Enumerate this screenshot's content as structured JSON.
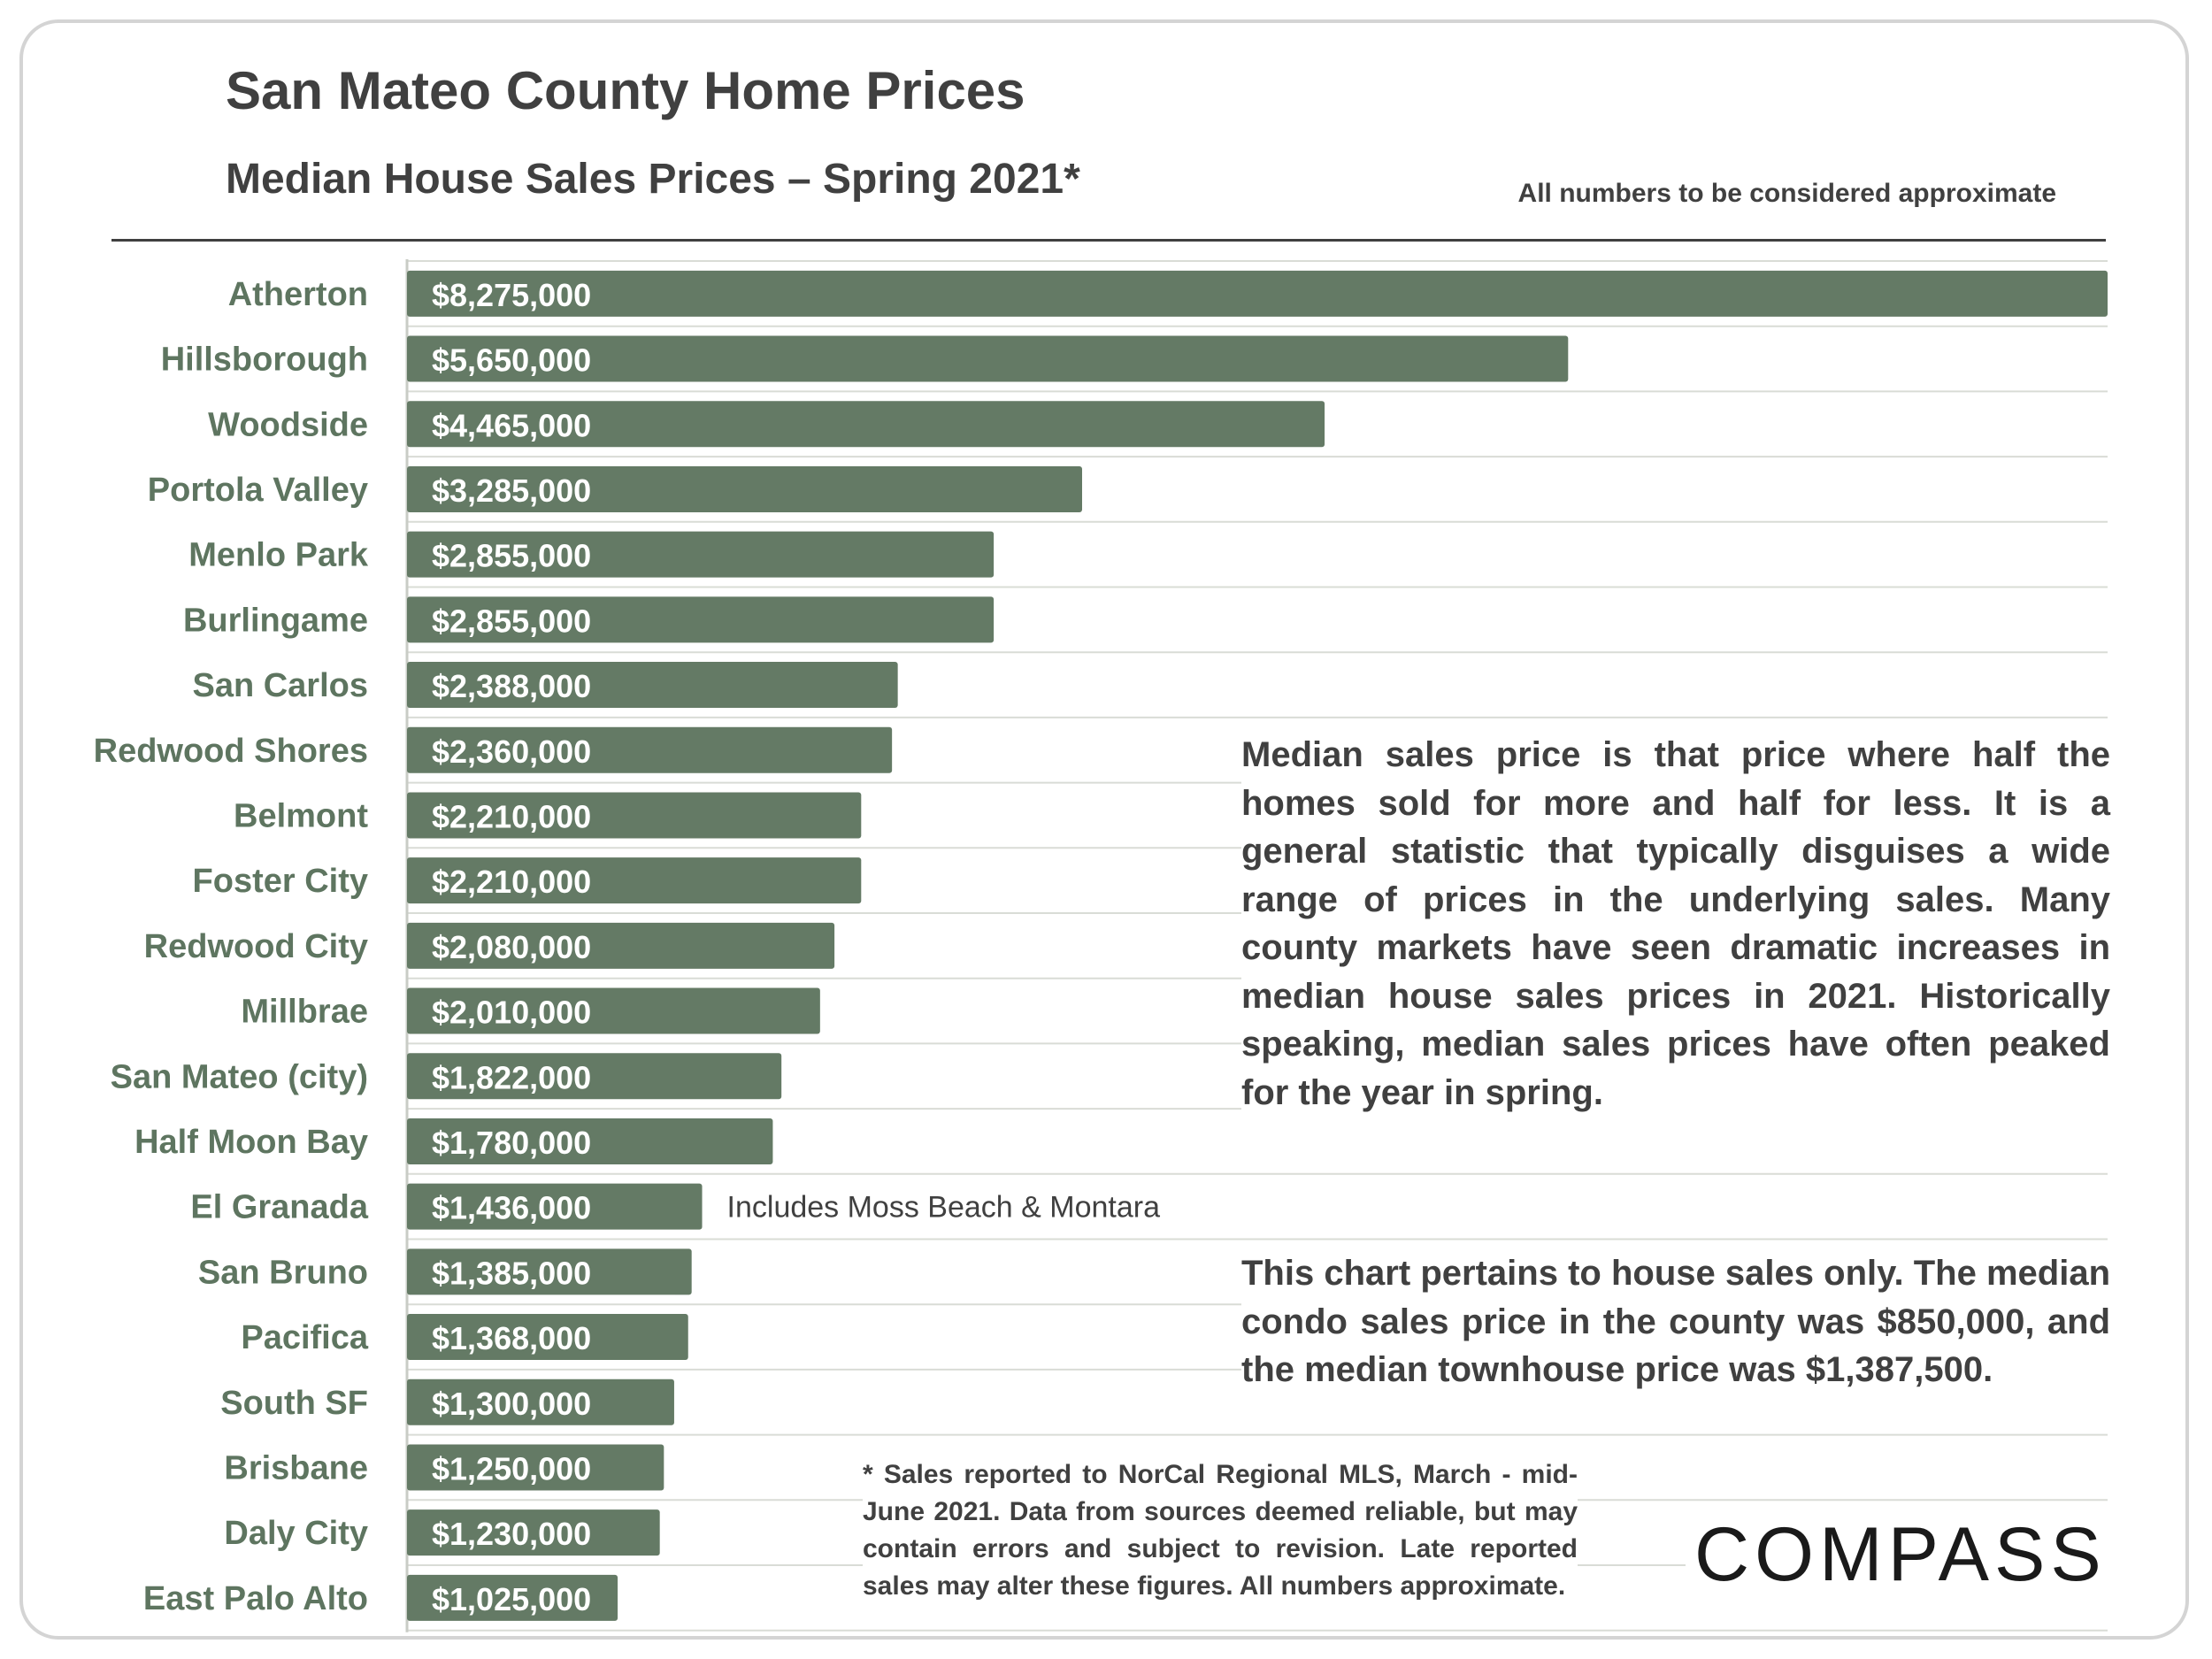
{
  "title": "San Mateo County Home Prices",
  "subtitle": "Median House Sales Prices – Spring 2021*",
  "note_top": "All numbers to be considered approximate",
  "chart_data": {
    "type": "bar",
    "orientation": "horizontal",
    "title": "Median House Sales Prices – Spring 2021*",
    "categories": [
      "Atherton",
      "Hillsborough",
      "Woodside",
      "Portola Valley",
      "Menlo Park",
      "Burlingame",
      "San Carlos",
      "Redwood Shores",
      "Belmont",
      "Foster City",
      "Redwood City",
      "Millbrae",
      "San Mateo (city)",
      "Half Moon Bay",
      "El Granada",
      "San Bruno",
      "Pacifica",
      "South SF",
      "Brisbane",
      "Daly City",
      "East Palo Alto"
    ],
    "values": [
      8275000,
      5650000,
      4465000,
      3285000,
      2855000,
      2855000,
      2388000,
      2360000,
      2210000,
      2210000,
      2080000,
      2010000,
      1822000,
      1780000,
      1436000,
      1385000,
      1368000,
      1300000,
      1250000,
      1230000,
      1025000
    ],
    "value_labels": [
      "$8,275,000",
      "$5,650,000",
      "$4,465,000",
      "$3,285,000",
      "$2,855,000",
      "$2,855,000",
      "$2,388,000",
      "$2,360,000",
      "$2,210,000",
      "$2,210,000",
      "$2,080,000",
      "$2,010,000",
      "$1,822,000",
      "$1,780,000",
      "$1,436,000",
      "$1,385,000",
      "$1,368,000",
      "$1,300,000",
      "$1,250,000",
      "$1,230,000",
      "$1,025,000"
    ],
    "bar_color": "#647a65",
    "label_color": "#5e7560",
    "xlim": [
      0,
      8275000
    ],
    "xlabel": "",
    "ylabel": "",
    "grid": true,
    "annotations": [
      {
        "category": "El Granada",
        "text": "Includes Moss Beach & Montara"
      }
    ]
  },
  "description": "Median sales price is that price where half the homes sold for more and half for less. It is a general statistic that typically disguises a wide range of prices in the underlying sales. Many county markets have seen dramatic increases in median house sales prices in 2021. Historically speaking, median sales prices have often peaked for the year in spring.",
  "houses_note": "This chart pertains to house sales only. The median condo sales price in the county was $850,000, and the median townhouse price was $1,387,500.",
  "footnote": "* Sales reported to NorCal Regional MLS, March - mid-June 2021. Data from sources deemed reliable, but may contain errors and subject to revision. Late reported sales may alter these figures. All numbers approximate.",
  "logo": "COMPASS"
}
